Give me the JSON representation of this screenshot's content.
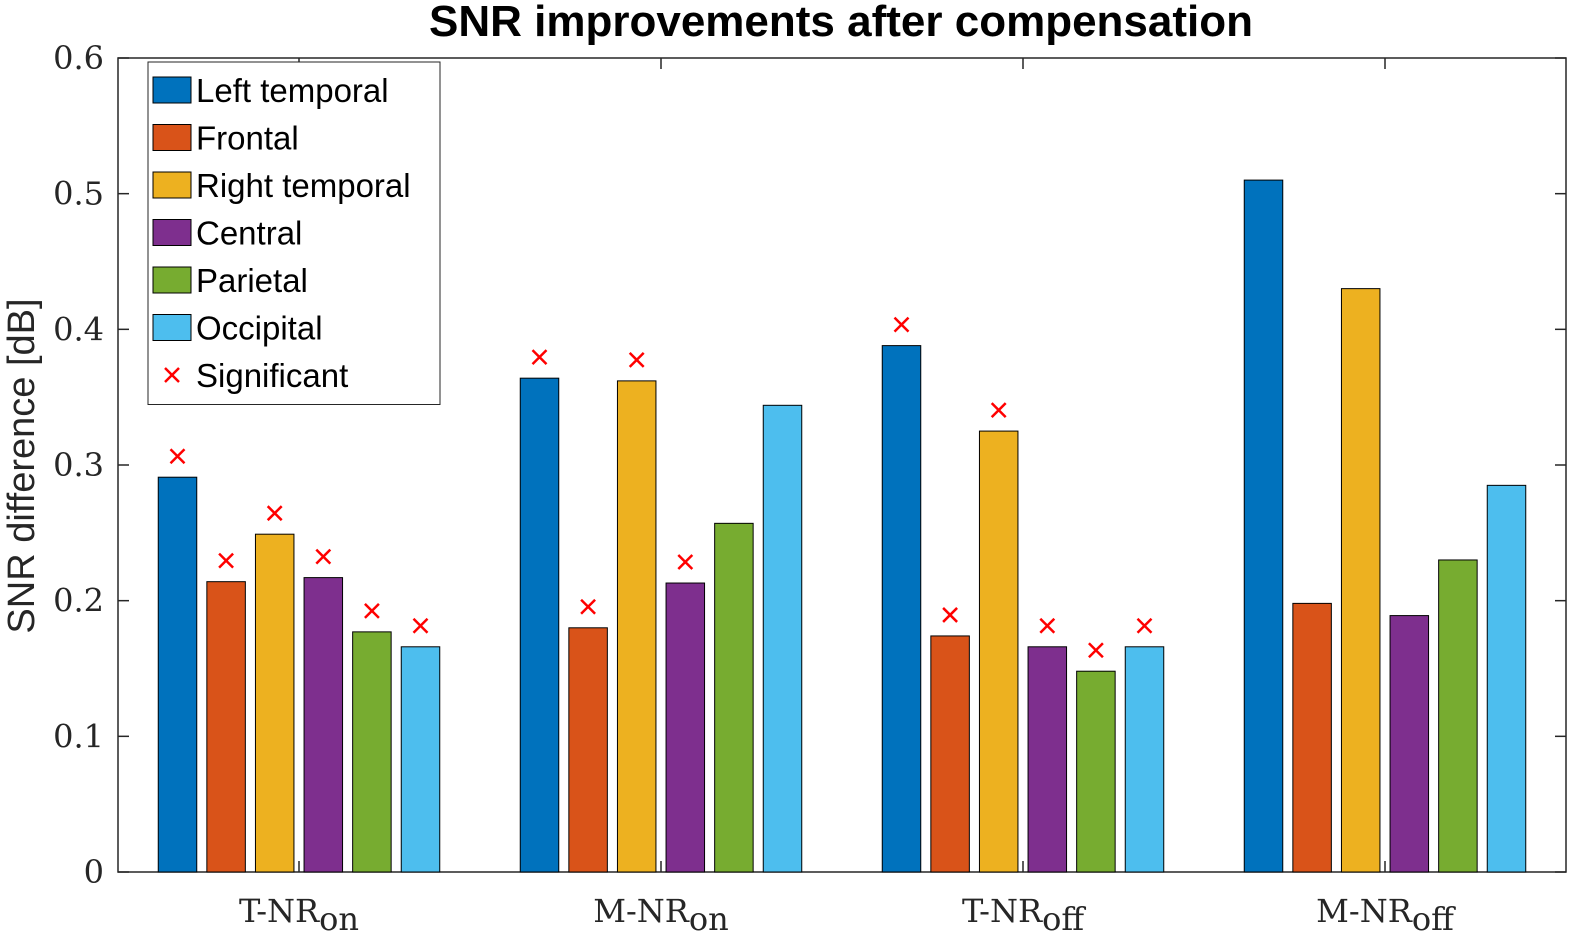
{
  "chart_data": {
    "type": "bar",
    "title": "SNR improvements after compensation",
    "xlabel": "",
    "ylabel": "SNR difference [dB]",
    "ylim": [
      0,
      0.6
    ],
    "yticks": [
      "0",
      "0.1",
      "0.2",
      "0.3",
      "0.4",
      "0.5",
      "0.6"
    ],
    "categories": [
      {
        "base": "T-NR",
        "sub": "on"
      },
      {
        "base": "M-NR",
        "sub": "on"
      },
      {
        "base": "T-NR",
        "sub": "off"
      },
      {
        "base": "M-NR",
        "sub": "off"
      }
    ],
    "series": [
      {
        "name": "Left temporal",
        "color": "#0072BD",
        "values": [
          0.291,
          0.364,
          0.388,
          0.51
        ],
        "significant": [
          true,
          true,
          true,
          false
        ]
      },
      {
        "name": "Frontal",
        "color": "#D95319",
        "values": [
          0.214,
          0.18,
          0.174,
          0.198
        ],
        "significant": [
          true,
          true,
          true,
          false
        ]
      },
      {
        "name": "Right temporal",
        "color": "#EDB120",
        "values": [
          0.249,
          0.362,
          0.325,
          0.43
        ],
        "significant": [
          true,
          true,
          true,
          false
        ]
      },
      {
        "name": "Central",
        "color": "#7E2F8E",
        "values": [
          0.217,
          0.213,
          0.166,
          0.189
        ],
        "significant": [
          true,
          true,
          true,
          false
        ]
      },
      {
        "name": "Parietal",
        "color": "#77AC30",
        "values": [
          0.177,
          0.257,
          0.148,
          0.23
        ],
        "significant": [
          true,
          false,
          true,
          false
        ]
      },
      {
        "name": "Occipital",
        "color": "#4DBEEE",
        "values": [
          0.166,
          0.344,
          0.166,
          0.285
        ],
        "significant": [
          true,
          false,
          true,
          false
        ]
      }
    ],
    "marker": {
      "name": "Significant",
      "symbol": "×",
      "color": "#FF0000"
    },
    "legend": "top-left",
    "grid": false
  }
}
